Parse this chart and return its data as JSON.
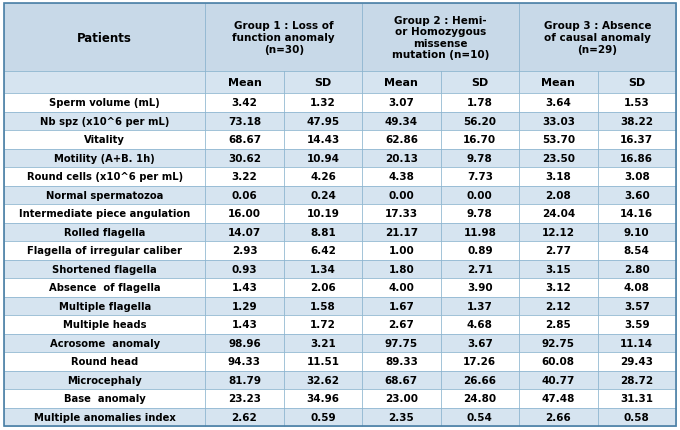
{
  "col_headers": [
    "Patients",
    "Group 1 : Loss of\nfunction anomaly\n(n=30)",
    "Group 2 : Hemi-\nor Homozygous\nmissense\nmutation (n=10)",
    "Group 3 : Absence\nof causal anomaly\n(n=29)"
  ],
  "sub_headers": [
    "",
    "Mean",
    "SD",
    "Mean",
    "SD",
    "Mean",
    "SD"
  ],
  "rows": [
    [
      "Sperm volume (mL)",
      "3.42",
      "1.32",
      "3.07",
      "1.78",
      "3.64",
      "1.53"
    ],
    [
      "Nb spz (x10^6 per mL)",
      "73.18",
      "47.95",
      "49.34",
      "56.20",
      "33.03",
      "38.22"
    ],
    [
      "Vitality",
      "68.67",
      "14.43",
      "62.86",
      "16.70",
      "53.70",
      "16.37"
    ],
    [
      "Motility (A+B. 1h)",
      "30.62",
      "10.94",
      "20.13",
      "9.78",
      "23.50",
      "16.86"
    ],
    [
      "Round cells (x10^6 per mL)",
      "3.22",
      "4.26",
      "4.38",
      "7.73",
      "3.18",
      "3.08"
    ],
    [
      "Normal spermatozoa",
      "0.06",
      "0.24",
      "0.00",
      "0.00",
      "2.08",
      "3.60"
    ],
    [
      "Intermediate piece angulation",
      "16.00",
      "10.19",
      "17.33",
      "9.78",
      "24.04",
      "14.16"
    ],
    [
      "Rolled flagella",
      "14.07",
      "8.81",
      "21.17",
      "11.98",
      "12.12",
      "9.10"
    ],
    [
      "Flagella of irregular caliber",
      "2.93",
      "6.42",
      "1.00",
      "0.89",
      "2.77",
      "8.54"
    ],
    [
      "Shortened flagella",
      "0.93",
      "1.34",
      "1.80",
      "2.71",
      "3.15",
      "2.80"
    ],
    [
      "Absence  of flagella",
      "1.43",
      "2.06",
      "4.00",
      "3.90",
      "3.12",
      "4.08"
    ],
    [
      "Multiple flagella",
      "1.29",
      "1.58",
      "1.67",
      "1.37",
      "2.12",
      "3.57"
    ],
    [
      "Multiple heads",
      "1.43",
      "1.72",
      "2.67",
      "4.68",
      "2.85",
      "3.59"
    ],
    [
      "Acrosome  anomaly",
      "98.96",
      "3.21",
      "97.75",
      "3.67",
      "92.75",
      "11.14"
    ],
    [
      "Round head",
      "94.33",
      "11.51",
      "89.33",
      "17.26",
      "60.08",
      "29.43"
    ],
    [
      "Microcephaly",
      "81.79",
      "32.62",
      "68.67",
      "26.66",
      "40.77",
      "28.72"
    ],
    [
      "Base  anomaly",
      "23.23",
      "34.96",
      "23.00",
      "24.80",
      "47.48",
      "31.31"
    ],
    [
      "Multiple anomalies index",
      "2.62",
      "0.59",
      "2.35",
      "0.54",
      "2.66",
      "0.58"
    ]
  ],
  "row_bg": [
    "#ffffff",
    "#d6e4f0",
    "#ffffff",
    "#d6e4f0",
    "#ffffff",
    "#d6e4f0",
    "#ffffff",
    "#d6e4f0",
    "#ffffff",
    "#d6e4f0",
    "#ffffff",
    "#d6e4f0",
    "#ffffff",
    "#d6e4f0",
    "#ffffff",
    "#d6e4f0",
    "#ffffff",
    "#d6e4f0"
  ],
  "header_bg": "#c8d9e8",
  "subheader_bg": "#d6e4f0",
  "border_color": "#7baac8",
  "figsize": [
    6.8,
    4.31
  ],
  "dpi": 100
}
